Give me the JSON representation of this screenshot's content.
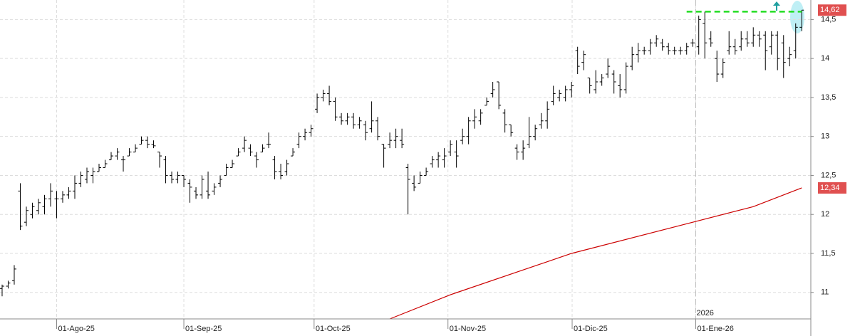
{
  "chart_data": {
    "type": "ohlc",
    "xlim": [
      -0.35,
      133.5
    ],
    "ylim": [
      10.66,
      14.75
    ],
    "grid": true,
    "color": "#000000",
    "yticks": [
      11,
      {
        "value": 11.5,
        "label": "11,5"
      },
      12,
      {
        "value": 12.5,
        "label": "12,5"
      },
      13,
      {
        "value": 13.5,
        "label": "13,5"
      },
      14,
      {
        "value": 14.5,
        "label": "14,5"
      }
    ],
    "xticks": [
      {
        "value": 9,
        "label": "01-Ago-25"
      },
      {
        "value": 30,
        "label": "01-Sep-25"
      },
      {
        "value": 51.5,
        "label": "01-Oct-25"
      },
      {
        "value": 73.6,
        "label": "01-Nov-25"
      },
      {
        "value": 94.1,
        "label": "01-Dic-25"
      },
      {
        "value": 114.5,
        "label": "01-Ene-26"
      }
    ],
    "year_marker": {
      "value": 114.5,
      "label": "2026"
    },
    "ohlc": [
      [
        11.05,
        11.1,
        10.95,
        11.08
      ],
      [
        11.08,
        11.15,
        11.05,
        11.12
      ],
      [
        11.15,
        11.35,
        11.1,
        11.3
      ],
      [
        12.3,
        12.4,
        11.8,
        11.85
      ],
      [
        11.9,
        12.1,
        11.85,
        12.05
      ],
      [
        12.0,
        12.15,
        11.95,
        12.1
      ],
      [
        12.05,
        12.2,
        12.0,
        12.15
      ],
      [
        12.1,
        12.25,
        12.0,
        12.2
      ],
      [
        12.2,
        12.4,
        12.1,
        12.3
      ],
      [
        12.2,
        12.3,
        11.95,
        12.2
      ],
      [
        12.2,
        12.3,
        12.15,
        12.25
      ],
      [
        12.25,
        12.35,
        12.2,
        12.3
      ],
      [
        12.3,
        12.5,
        12.2,
        12.4
      ],
      [
        12.4,
        12.55,
        12.35,
        12.5
      ],
      [
        12.45,
        12.6,
        12.4,
        12.55
      ],
      [
        12.5,
        12.6,
        12.4,
        12.55
      ],
      [
        12.55,
        12.65,
        12.55,
        12.6
      ],
      [
        12.6,
        12.7,
        12.6,
        12.65
      ],
      [
        12.7,
        12.8,
        12.7,
        12.75
      ],
      [
        12.75,
        12.85,
        12.7,
        12.8
      ],
      [
        12.7,
        12.75,
        12.55,
        12.7
      ],
      [
        12.75,
        12.85,
        12.75,
        12.8
      ],
      [
        12.8,
        12.9,
        12.8,
        12.85
      ],
      [
        12.9,
        13.0,
        12.9,
        12.95
      ],
      [
        12.95,
        13.0,
        12.85,
        12.9
      ],
      [
        12.9,
        12.95,
        12.85,
        12.88
      ],
      [
        12.8,
        12.8,
        12.6,
        12.75
      ],
      [
        12.7,
        12.75,
        12.4,
        12.5
      ],
      [
        12.5,
        12.55,
        12.4,
        12.45
      ],
      [
        12.45,
        12.55,
        12.4,
        12.5
      ],
      [
        12.5,
        12.5,
        12.35,
        12.45
      ],
      [
        12.4,
        12.45,
        12.15,
        12.35
      ],
      [
        12.3,
        12.35,
        12.2,
        12.25
      ],
      [
        12.25,
        12.5,
        12.2,
        12.45
      ],
      [
        12.3,
        12.55,
        12.2,
        12.25
      ],
      [
        12.3,
        12.4,
        12.25,
        12.35
      ],
      [
        12.4,
        12.5,
        12.35,
        12.45
      ],
      [
        12.5,
        12.65,
        12.5,
        12.6
      ],
      [
        12.6,
        12.7,
        12.6,
        12.65
      ],
      [
        12.75,
        12.85,
        12.75,
        12.8
      ],
      [
        12.85,
        13.0,
        12.8,
        12.95
      ],
      [
        12.85,
        12.9,
        12.75,
        12.8
      ],
      [
        12.75,
        12.8,
        12.6,
        12.7
      ],
      [
        12.8,
        12.9,
        12.8,
        12.85
      ],
      [
        12.9,
        13.05,
        12.85,
        12.9
      ],
      [
        12.7,
        12.75,
        12.45,
        12.55
      ],
      [
        12.55,
        12.65,
        12.45,
        12.5
      ],
      [
        12.55,
        12.7,
        12.5,
        12.65
      ],
      [
        12.75,
        12.85,
        12.75,
        12.8
      ],
      [
        12.9,
        13.05,
        12.85,
        13.0
      ],
      [
        13.0,
        13.1,
        12.95,
        13.05
      ],
      [
        13.05,
        13.15,
        13.0,
        13.1
      ],
      [
        13.35,
        13.55,
        13.3,
        13.5
      ],
      [
        13.5,
        13.6,
        13.45,
        13.55
      ],
      [
        13.55,
        13.65,
        13.4,
        13.45
      ],
      [
        13.45,
        13.5,
        13.2,
        13.25
      ],
      [
        13.25,
        13.3,
        13.15,
        13.2
      ],
      [
        13.2,
        13.3,
        13.15,
        13.25
      ],
      [
        13.25,
        13.3,
        13.1,
        13.15
      ],
      [
        13.15,
        13.25,
        13.1,
        13.2
      ],
      [
        13.15,
        13.2,
        12.95,
        13.05
      ],
      [
        13.1,
        13.45,
        13.05,
        13.2
      ],
      [
        13.2,
        13.25,
        12.95,
        13.0
      ],
      [
        12.9,
        12.9,
        12.6,
        12.85
      ],
      [
        12.9,
        13.05,
        12.85,
        12.95
      ],
      [
        12.95,
        13.1,
        12.85,
        13.0
      ],
      [
        12.95,
        13.1,
        12.85,
        12.9
      ],
      [
        12.6,
        12.65,
        12.0,
        12.45
      ],
      [
        12.4,
        12.5,
        12.3,
        12.35
      ],
      [
        12.4,
        12.55,
        12.4,
        12.5
      ],
      [
        12.5,
        12.6,
        12.5,
        12.55
      ],
      [
        12.65,
        12.75,
        12.6,
        12.7
      ],
      [
        12.7,
        12.8,
        12.6,
        12.75
      ],
      [
        12.7,
        12.85,
        12.6,
        12.75
      ],
      [
        12.8,
        12.95,
        12.75,
        12.9
      ],
      [
        12.8,
        12.95,
        12.6,
        12.75
      ],
      [
        12.95,
        13.1,
        12.9,
        13.0
      ],
      [
        13.0,
        13.25,
        12.9,
        13.2
      ],
      [
        13.2,
        13.35,
        13.1,
        13.25
      ],
      [
        13.2,
        13.35,
        13.15,
        13.3
      ],
      [
        13.4,
        13.5,
        13.4,
        13.45
      ],
      [
        13.55,
        13.7,
        13.5,
        13.6
      ],
      [
        13.7,
        13.7,
        13.35,
        13.4
      ],
      [
        13.3,
        13.35,
        13.05,
        13.15
      ],
      [
        13.15,
        13.15,
        13.0,
        13.05
      ],
      [
        12.85,
        12.9,
        12.7,
        12.8
      ],
      [
        12.8,
        12.95,
        12.7,
        12.85
      ],
      [
        12.9,
        13.25,
        12.85,
        13.0
      ],
      [
        13.0,
        13.15,
        12.95,
        13.1
      ],
      [
        13.15,
        13.3,
        13.1,
        13.2
      ],
      [
        13.2,
        13.45,
        13.1,
        13.35
      ],
      [
        13.45,
        13.65,
        13.4,
        13.55
      ],
      [
        13.5,
        13.6,
        13.45,
        13.55
      ],
      [
        13.5,
        13.65,
        13.45,
        13.6
      ],
      [
        13.6,
        13.7,
        13.5,
        13.65
      ],
      [
        14.1,
        14.15,
        13.8,
        13.9
      ],
      [
        13.95,
        14.1,
        13.85,
        14.05
      ],
      [
        13.75,
        13.75,
        13.55,
        13.65
      ],
      [
        13.6,
        13.85,
        13.55,
        13.7
      ],
      [
        13.7,
        13.8,
        13.65,
        13.75
      ],
      [
        13.8,
        14.0,
        13.75,
        13.9
      ],
      [
        13.8,
        13.85,
        13.55,
        13.7
      ],
      [
        13.65,
        13.8,
        13.5,
        13.6
      ],
      [
        13.6,
        13.95,
        13.55,
        13.9
      ],
      [
        13.9,
        14.15,
        13.85,
        14.05
      ],
      [
        14.05,
        14.2,
        13.95,
        14.1
      ],
      [
        14.1,
        14.15,
        14.05,
        14.1
      ],
      [
        14.1,
        14.25,
        14.05,
        14.2
      ],
      [
        14.2,
        14.3,
        14.15,
        14.25
      ],
      [
        14.2,
        14.25,
        14.1,
        14.15
      ],
      [
        14.15,
        14.2,
        14.05,
        14.1
      ],
      [
        14.1,
        14.15,
        14.05,
        14.1
      ],
      [
        14.1,
        14.15,
        14.05,
        14.1
      ],
      [
        14.1,
        14.2,
        14.05,
        14.15
      ],
      [
        14.2,
        14.25,
        14.15,
        14.2
      ],
      [
        14.15,
        14.55,
        14.05,
        14.5
      ],
      [
        14.45,
        14.6,
        14.0,
        14.2
      ],
      [
        14.25,
        14.35,
        14.15,
        14.2
      ],
      [
        14.0,
        14.1,
        13.7,
        13.8
      ],
      [
        13.8,
        14.0,
        13.75,
        13.95
      ],
      [
        14.1,
        14.35,
        14.05,
        14.15
      ],
      [
        14.15,
        14.25,
        14.05,
        14.1
      ],
      [
        14.15,
        14.35,
        14.1,
        14.25
      ],
      [
        14.25,
        14.35,
        14.15,
        14.2
      ],
      [
        14.2,
        14.4,
        14.15,
        14.3
      ],
      [
        14.3,
        14.35,
        14.15,
        14.25
      ],
      [
        14.3,
        14.35,
        13.85,
        14.1
      ],
      [
        14.15,
        14.35,
        14.05,
        14.3
      ],
      [
        14.3,
        14.35,
        13.85,
        14.0
      ],
      [
        14.2,
        14.3,
        13.75,
        13.95
      ],
      [
        14.0,
        14.15,
        13.9,
        14.05
      ],
      [
        14.1,
        14.45,
        14.0,
        14.4
      ],
      [
        14.4,
        14.62,
        14.35,
        14.62
      ]
    ],
    "moving_average": {
      "color": "#cc0000",
      "x": [
        64,
        74,
        94,
        114,
        124,
        132
      ],
      "values": [
        10.66,
        10.97,
        11.5,
        11.9,
        12.1,
        12.34
      ]
    },
    "resistance": {
      "color": "#22dd22",
      "x": [
        113,
        132
      ],
      "value": 14.6
    },
    "price_labels": [
      {
        "value": 14.62,
        "label": "14,62"
      },
      {
        "value": 12.34,
        "label": "12,34"
      }
    ]
  }
}
